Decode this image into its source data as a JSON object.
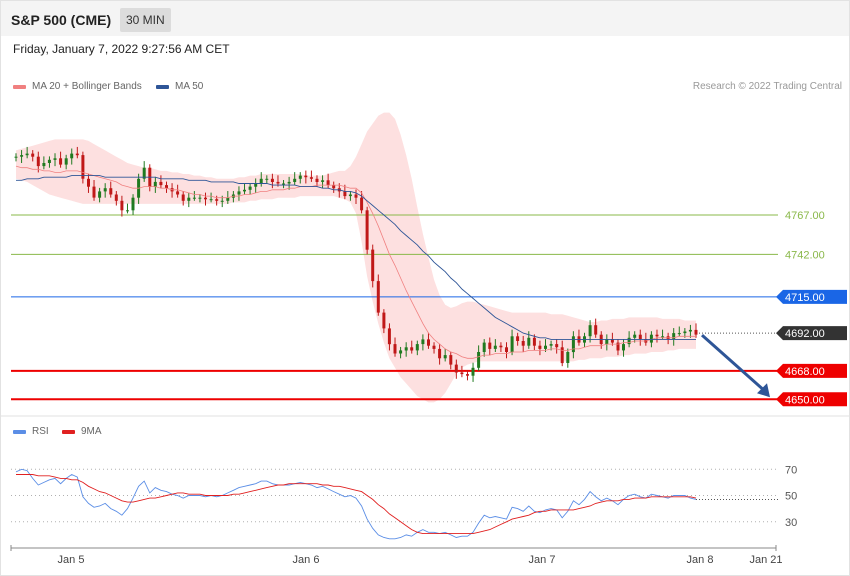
{
  "header": {
    "title": "S&P 500 (CME)",
    "interval": "30 MIN"
  },
  "datetime": "Friday, January 7, 2022 9:27:56 AM CET",
  "legend": {
    "ma20": "MA 20 + Bollinger Bands",
    "ma50": "MA 50",
    "rsi": "RSI",
    "ma9": "9MA"
  },
  "copyright": "Research © 2022 Trading Central",
  "colors": {
    "bollinger": "#fde0e0",
    "ma20": "#f08080",
    "ma50": "#2e5597",
    "resistance": "#8ab84a",
    "pivot": "#1a66e6",
    "support": "#ee0000",
    "rsi": "#5b8ee6",
    "ma9": "#e02020",
    "up": "#207a20",
    "down": "#c01818",
    "last": "#333333"
  },
  "chart_data": [
    {
      "type": "candlestick",
      "x_labels": [
        "Jan 5",
        "Jan 6",
        "Jan 7",
        "Jan 8",
        "Jan 21"
      ],
      "ylim": [
        4640,
        4840
      ],
      "levels": [
        {
          "label": "4767.00",
          "value": 4767,
          "kind": "resistance"
        },
        {
          "label": "4742.00",
          "value": 4742,
          "kind": "resistance"
        },
        {
          "label": "4715.00",
          "value": 4715,
          "kind": "pivot"
        },
        {
          "label": "4692.00",
          "value": 4692,
          "kind": "last"
        },
        {
          "label": "4668.00",
          "value": 4668,
          "kind": "support"
        },
        {
          "label": "4650.00",
          "value": 4650,
          "kind": "support"
        }
      ],
      "close": [
        4804,
        4805,
        4806,
        4804,
        4798,
        4800,
        4802,
        4803,
        4799,
        4803,
        4806,
        4805,
        4790,
        4785,
        4778,
        4782,
        4784,
        4780,
        4776,
        4770,
        4770,
        4778,
        4790,
        4797,
        4785,
        4788,
        4786,
        4784,
        4782,
        4780,
        4776,
        4778,
        4778,
        4778,
        4777,
        4777,
        4776,
        4776,
        4778,
        4780,
        4782,
        4783,
        4785,
        4787,
        4790,
        4790,
        4788,
        4787,
        4787,
        4788,
        4790,
        4792,
        4791,
        4790,
        4788,
        4789,
        4786,
        4784,
        4782,
        4779,
        4780,
        4778,
        4770,
        4745,
        4725,
        4705,
        4695,
        4685,
        4679,
        4681,
        4683,
        4681,
        4685,
        4688,
        4684,
        4682,
        4676,
        4678,
        4672,
        4667,
        4666,
        4665,
        4670,
        4680,
        4686,
        4682,
        4684,
        4683,
        4680,
        4690,
        4687,
        4684,
        4689,
        4684,
        4682,
        4684,
        4685,
        4683,
        4673,
        4680,
        4690,
        4686,
        4690,
        4697,
        4691,
        4685,
        4688,
        4686,
        4681,
        4685,
        4689,
        4691,
        4688,
        4686,
        4691,
        4690,
        4690,
        4688,
        4692,
        4692,
        4693,
        4694,
        4691
      ],
      "ma20": [
        4798,
        4797,
        4797,
        4796,
        4796,
        4795,
        4795,
        4794,
        4794,
        4795,
        4795,
        4795,
        4794,
        4793,
        4792,
        4791,
        4790,
        4789,
        4788,
        4786,
        4785,
        4784,
        4784,
        4785,
        4785,
        4785,
        4784,
        4784,
        4783,
        4783,
        4782,
        4781,
        4780,
        4780,
        4779,
        4779,
        4778,
        4778,
        4778,
        4779,
        4779,
        4780,
        4780,
        4781,
        4782,
        4782,
        4783,
        4783,
        4783,
        4784,
        4784,
        4785,
        4785,
        4785,
        4786,
        4786,
        4786,
        4786,
        4786,
        4785,
        4784,
        4784,
        4781,
        4775,
        4768,
        4760,
        4751,
        4742,
        4735,
        4727,
        4719,
        4712,
        4705,
        4698,
        4692,
        4688,
        4685,
        4682,
        4680,
        4679,
        4677,
        4676,
        4676,
        4677,
        4678,
        4678,
        4679,
        4679,
        4679,
        4680,
        4680,
        4680,
        4681,
        4681,
        4681,
        4681,
        4682,
        4682,
        4681,
        4681,
        4682,
        4682,
        4683,
        4684,
        4684,
        4684,
        4685,
        4685,
        4685,
        4686,
        4686,
        4687,
        4687,
        4687,
        4688,
        4689,
        4689,
        4689,
        4689,
        4690,
        4690,
        4690,
        4690
      ],
      "ma50": [
        4789,
        4789,
        4790,
        4790,
        4790,
        4791,
        4791,
        4791,
        4791,
        4791,
        4792,
        4792,
        4792,
        4792,
        4792,
        4792,
        4791,
        4791,
        4791,
        4791,
        4791,
        4791,
        4791,
        4791,
        4791,
        4791,
        4790,
        4790,
        4790,
        4790,
        4790,
        4789,
        4789,
        4789,
        4789,
        4788,
        4788,
        4788,
        4788,
        4788,
        4787,
        4787,
        4787,
        4787,
        4787,
        4787,
        4786,
        4786,
        4786,
        4786,
        4786,
        4785,
        4785,
        4785,
        4785,
        4784,
        4784,
        4783,
        4783,
        4782,
        4782,
        4781,
        4779,
        4776,
        4773,
        4770,
        4767,
        4764,
        4761,
        4757,
        4754,
        4751,
        4748,
        4744,
        4741,
        4737,
        4734,
        4731,
        4727,
        4724,
        4720,
        4717,
        4714,
        4711,
        4708,
        4705,
        4702,
        4700,
        4698,
        4696,
        4694,
        4692,
        4691,
        4690,
        4689,
        4689,
        4688,
        4688,
        4688,
        4688,
        4688,
        4688,
        4688,
        4688,
        4688,
        4688,
        4688,
        4688,
        4688,
        4688,
        4688,
        4688,
        4688,
        4688,
        4688,
        4688,
        4688,
        4688,
        4688,
        4688,
        4688,
        4688,
        4688
      ],
      "bollinger_upper": [
        4808,
        4809,
        4810,
        4811,
        4812,
        4813,
        4814,
        4815,
        4815,
        4815,
        4815,
        4815,
        4815,
        4814,
        4812,
        4810,
        4808,
        4806,
        4804,
        4802,
        4800,
        4799,
        4798,
        4797,
        4797,
        4796,
        4795,
        4795,
        4794,
        4794,
        4793,
        4793,
        4792,
        4792,
        4791,
        4791,
        4790,
        4790,
        4790,
        4790,
        4791,
        4791,
        4792,
        4792,
        4793,
        4793,
        4793,
        4793,
        4793,
        4793,
        4793,
        4793,
        4792,
        4792,
        4792,
        4792,
        4793,
        4794,
        4795,
        4795,
        4798,
        4804,
        4812,
        4820,
        4825,
        4830,
        4832,
        4832,
        4828,
        4818,
        4805,
        4790,
        4772,
        4755,
        4740,
        4726,
        4716,
        4710,
        4708,
        4709,
        4711,
        4712,
        4712,
        4711,
        4710,
        4709,
        4708,
        4707,
        4706,
        4705,
        4705,
        4705,
        4705,
        4705,
        4705,
        4705,
        4704,
        4704,
        4704,
        4703,
        4702,
        4701,
        4700,
        4699,
        4699,
        4700,
        4700,
        4701,
        4701,
        4701,
        4702,
        4702,
        4702,
        4702,
        4702,
        4702,
        4701,
        4701,
        4701,
        4701,
        4700,
        4700,
        4700
      ],
      "bollinger_lower": [
        4790,
        4789,
        4788,
        4786,
        4784,
        4782,
        4780,
        4779,
        4778,
        4777,
        4776,
        4775,
        4774,
        4774,
        4774,
        4774,
        4774,
        4774,
        4774,
        4774,
        4774,
        4774,
        4774,
        4774,
        4774,
        4774,
        4774,
        4774,
        4774,
        4774,
        4774,
        4774,
        4774,
        4774,
        4774,
        4774,
        4774,
        4774,
        4774,
        4775,
        4775,
        4775,
        4776,
        4776,
        4777,
        4777,
        4777,
        4778,
        4778,
        4778,
        4778,
        4779,
        4779,
        4779,
        4779,
        4779,
        4779,
        4779,
        4778,
        4777,
        4775,
        4768,
        4750,
        4728,
        4712,
        4698,
        4686,
        4676,
        4670,
        4664,
        4660,
        4656,
        4652,
        4650,
        4648,
        4648,
        4650,
        4654,
        4660,
        4666,
        4670,
        4672,
        4673,
        4674,
        4674,
        4674,
        4674,
        4674,
        4674,
        4674,
        4674,
        4674,
        4674,
        4674,
        4674,
        4674,
        4674,
        4674,
        4674,
        4674,
        4674,
        4675,
        4675,
        4676,
        4676,
        4676,
        4677,
        4677,
        4677,
        4678,
        4678,
        4679,
        4679,
        4679,
        4680,
        4680,
        4680,
        4681,
        4681,
        4682,
        4682,
        4682,
        4682
      ],
      "forecast": {
        "from": 4692,
        "to": 4650
      }
    },
    {
      "type": "line",
      "ylim": [
        10,
        90
      ],
      "y_ticks": [
        "70",
        "50",
        "30"
      ],
      "rsi": [
        68,
        70,
        69,
        63,
        58,
        60,
        62,
        63,
        59,
        63,
        66,
        64,
        49,
        44,
        41,
        42,
        44,
        40,
        38,
        35,
        40,
        48,
        57,
        61,
        52,
        56,
        54,
        53,
        51,
        50,
        48,
        50,
        50,
        50,
        49,
        50,
        49,
        50,
        52,
        54,
        56,
        57,
        58,
        59,
        61,
        61,
        59,
        58,
        58,
        58,
        59,
        60,
        59,
        58,
        56,
        57,
        55,
        53,
        51,
        49,
        50,
        48,
        42,
        32,
        25,
        20,
        18,
        17,
        17,
        18,
        20,
        19,
        22,
        24,
        22,
        22,
        21,
        22,
        20,
        18,
        19,
        19,
        22,
        29,
        35,
        33,
        34,
        33,
        32,
        41,
        40,
        38,
        42,
        38,
        37,
        39,
        40,
        39,
        33,
        38,
        46,
        43,
        47,
        53,
        49,
        46,
        48,
        46,
        43,
        47,
        50,
        51,
        49,
        48,
        51,
        50,
        49,
        48,
        50,
        50,
        50,
        48,
        47
      ],
      "ma9": [
        66,
        66,
        66,
        66,
        65,
        65,
        65,
        64,
        63,
        63,
        62,
        62,
        60,
        57,
        55,
        53,
        52,
        50,
        48,
        46,
        45,
        45,
        46,
        47,
        48,
        48,
        49,
        50,
        51,
        52,
        52,
        51,
        51,
        51,
        50,
        50,
        50,
        50,
        50,
        51,
        51,
        52,
        53,
        54,
        55,
        56,
        57,
        58,
        58,
        59,
        59,
        59,
        59,
        59,
        59,
        58,
        58,
        57,
        57,
        56,
        55,
        54,
        53,
        50,
        47,
        43,
        40,
        36,
        33,
        30,
        27,
        24,
        22,
        21,
        21,
        21,
        21,
        21,
        21,
        21,
        21,
        21,
        21,
        22,
        23,
        24,
        26,
        28,
        30,
        32,
        33,
        34,
        35,
        37,
        38,
        38,
        39,
        39,
        39,
        39,
        39,
        40,
        41,
        42,
        44,
        45,
        46,
        46,
        46,
        47,
        47,
        48,
        48,
        48,
        49,
        49,
        49,
        49,
        49,
        49,
        49,
        49,
        48
      ]
    }
  ]
}
